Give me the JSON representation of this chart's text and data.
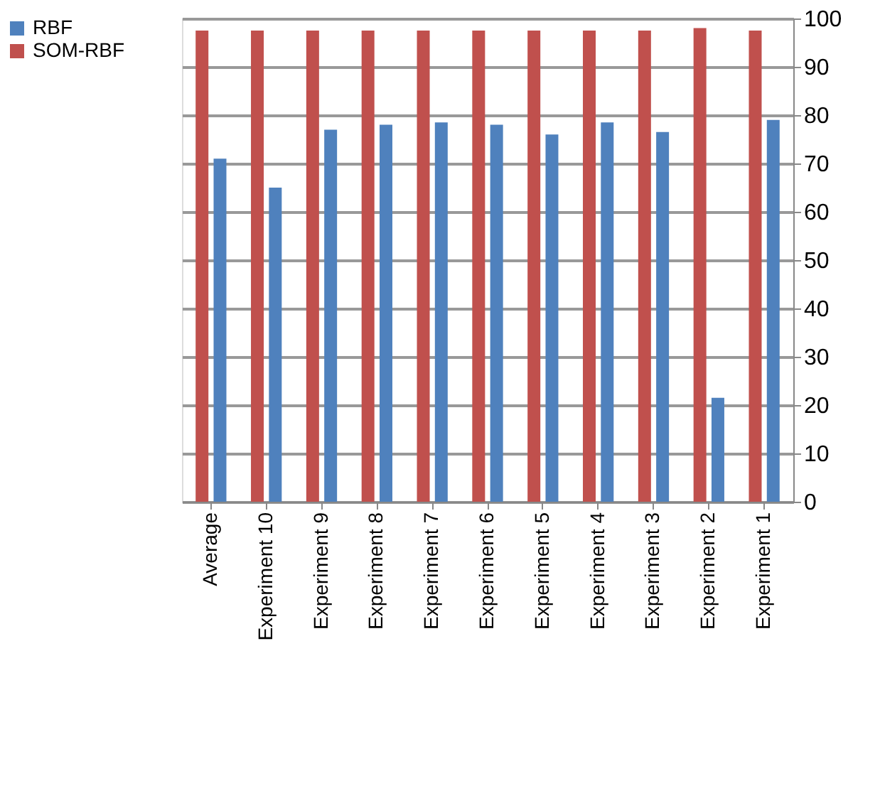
{
  "chart_data": {
    "type": "bar",
    "categories": [
      "Average",
      "Experiment 10",
      "Experiment 9",
      "Experiment 8",
      "Experiment 7",
      "Experiment 6",
      "Experiment 5",
      "Experiment 4",
      "Experiment 3",
      "Experiment 2",
      "Experiment 1"
    ],
    "series": [
      {
        "name": "RBF",
        "color": "#4f81bd",
        "values": [
          71,
          65,
          77,
          78,
          78.5,
          78,
          76,
          78.5,
          76.5,
          21.5,
          79
        ]
      },
      {
        "name": "SOM-RBF",
        "color": "#c0504d",
        "values": [
          97.5,
          97.5,
          97.5,
          97.5,
          97.5,
          97.5,
          97.5,
          97.5,
          97.5,
          98,
          97.5
        ]
      }
    ],
    "ylim": [
      0,
      100
    ],
    "yticks": [
      0,
      10,
      20,
      30,
      40,
      50,
      60,
      70,
      80,
      90,
      100
    ],
    "grid": "y",
    "legend": "left"
  }
}
